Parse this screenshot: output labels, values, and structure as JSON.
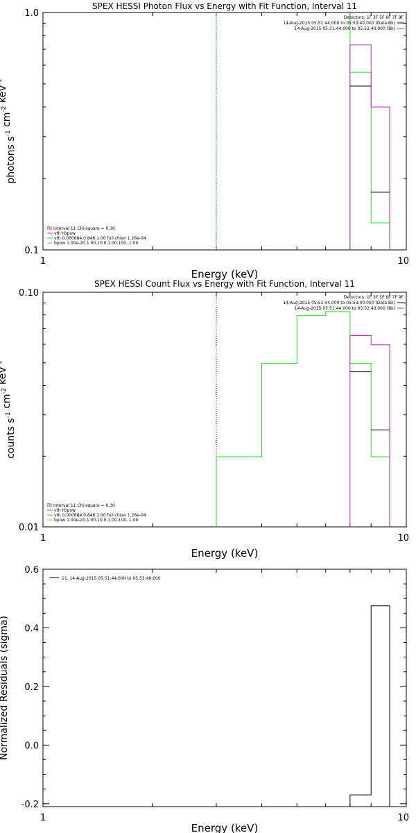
{
  "colors": {
    "background": "#ffffff",
    "axis": "#000000",
    "data": "#000000",
    "model_total": "#c020c0",
    "vth": "#20e020",
    "bpow": "#e0a020",
    "fit_interval_line": "#22aa22",
    "det_bk": "#000000",
    "det_sn": "#c020c0"
  },
  "chart_data": [
    {
      "type": "line",
      "title": "SPEX HESSI Photon Flux vs Energy with Fit Function, Interval 11",
      "xlabel": "Energy (keV)",
      "ylabel": "photons s^-1 cm^-2 keV^-1",
      "xscale": "log",
      "yscale": "log",
      "xlim": [
        1,
        10
      ],
      "ylim": [
        0.1,
        1.0
      ],
      "xtick_labels": [
        "1",
        "10"
      ],
      "ytick_labels": [
        "0.1",
        "1.0"
      ],
      "vline": {
        "x": 3.0,
        "style": "solid",
        "color": "fit_interval_line"
      },
      "detectors_text": "Detectors: 1F 3F 5F 6F 7F 9F",
      "time_lines": [
        {
          "text": "14-Aug-2015 05:51:44.000 to 05:53:40.000 (Data-Bk)",
          "color": "det_bk"
        },
        {
          "text": "14-Aug-2015 05:51:44.000 to 05:52:40.000 (Bk)",
          "color": "det_sn"
        }
      ],
      "legend_lines": [
        {
          "text": "Fit Interval 11   Chi-square = 0.30",
          "color": ""
        },
        {
          "text": "vth+bpow",
          "color": "model_total"
        },
        {
          "text": "vth 0.000684,0.846,1.00  full chian 1.26e-04",
          "color": "vth"
        },
        {
          "text": "bpow 1.00e-20,1.00,10.0,1.00,100.,1.00",
          "color": "bpow"
        }
      ],
      "series": [
        {
          "role": "vth",
          "color": "vth",
          "edges": [
            7.0,
            8.0,
            9.0
          ],
          "values": [
            0.56,
            0.13
          ],
          "start": 0.1,
          "end": 0.1,
          "extra_verticals": [
            {
              "x": 7.0,
              "y0": 0.56,
              "y1": 1.0
            }
          ]
        },
        {
          "role": "model_total",
          "color": "model_total",
          "edges": [
            7.0,
            8.0,
            9.0
          ],
          "values": [
            0.73,
            0.4
          ],
          "start": 0.1,
          "end": 0.1
        },
        {
          "role": "data",
          "color": "data",
          "segments": [
            {
              "x0": 7.0,
              "x1": 8.0,
              "y": 0.49
            },
            {
              "x0": 8.0,
              "x1": 9.0,
              "y": 0.175
            }
          ]
        }
      ]
    },
    {
      "type": "line",
      "title": "SPEX HESSI Count Flux vs Energy with Fit Function, Interval 11",
      "xlabel": "Energy (keV)",
      "ylabel": "counts s^-1 cm^-2 keV^-1",
      "xscale": "log",
      "yscale": "log",
      "xlim": [
        1,
        10
      ],
      "ylim": [
        0.01,
        0.1
      ],
      "xtick_labels": [
        "1",
        "10"
      ],
      "ytick_labels": [
        "0.01",
        "0.10"
      ],
      "vline": {
        "x": 3.0,
        "style": "dotted",
        "color": "axis"
      },
      "detectors_text": "Detectors: 1F 3F 5F 6F 7F 9F",
      "time_lines": [
        {
          "text": "14-Aug-2015 05:51:44.000 to 05:53:40.000 (Data-Bk)",
          "color": "det_bk"
        },
        {
          "text": "14-Aug-2015 05:51:44.000 to 05:52:40.000 (Bk)",
          "color": "det_sn"
        }
      ],
      "legend_lines": [
        {
          "text": "Fit Interval 11   Chi-square = 0.30",
          "color": ""
        },
        {
          "text": "vth+bpow",
          "color": "model_total"
        },
        {
          "text": "vth 0.000684,0.846,1.00  full chian 1.26e-04",
          "color": "vth"
        },
        {
          "text": "bpow 1.00e-20,1.00,10.0,1.00,100.,1.00",
          "color": "bpow"
        }
      ],
      "series": [
        {
          "role": "vth",
          "color": "vth",
          "edges": [
            3.0,
            4.0,
            5.0,
            6.0,
            7.0,
            8.0,
            9.0
          ],
          "values": [
            0.0199,
            0.0497,
            0.0795,
            0.0827,
            0.0497,
            0.0199
          ],
          "start": 0.01,
          "end": 0.01
        },
        {
          "role": "model_total",
          "color": "model_total",
          "edges": [
            7.0,
            8.0,
            9.0
          ],
          "values": [
            0.0653,
            0.0597
          ],
          "start": 0.01,
          "end": 0.01
        },
        {
          "role": "data",
          "color": "data",
          "segments": [
            {
              "x0": 7.0,
              "x1": 8.0,
              "y": 0.0458
            },
            {
              "x0": 8.0,
              "x1": 9.0,
              "y": 0.0259
            }
          ]
        }
      ]
    },
    {
      "type": "line",
      "title": "",
      "xlabel": "Energy (keV)",
      "ylabel": "Normalized Residuals (sigma)",
      "xscale": "log",
      "yscale": "linear",
      "xlim": [
        1,
        10
      ],
      "ylim": [
        -0.21,
        0.6
      ],
      "xtick_labels": [
        "1",
        "10"
      ],
      "yticks": [
        -0.2,
        0.0,
        0.2,
        0.4,
        0.6
      ],
      "ytick_labels": [
        "-0.2",
        "0.0",
        "0.2",
        "0.4",
        "0.6"
      ],
      "legend_entry": "11. 14-Aug-2015 05:51:44.000 to 05:53:40.000",
      "series": [
        {
          "role": "residual",
          "color": "data",
          "edges": [
            7.0,
            8.0,
            9.0
          ],
          "values": [
            -0.17,
            0.475
          ],
          "start": -0.21,
          "end": -0.21
        }
      ]
    }
  ]
}
